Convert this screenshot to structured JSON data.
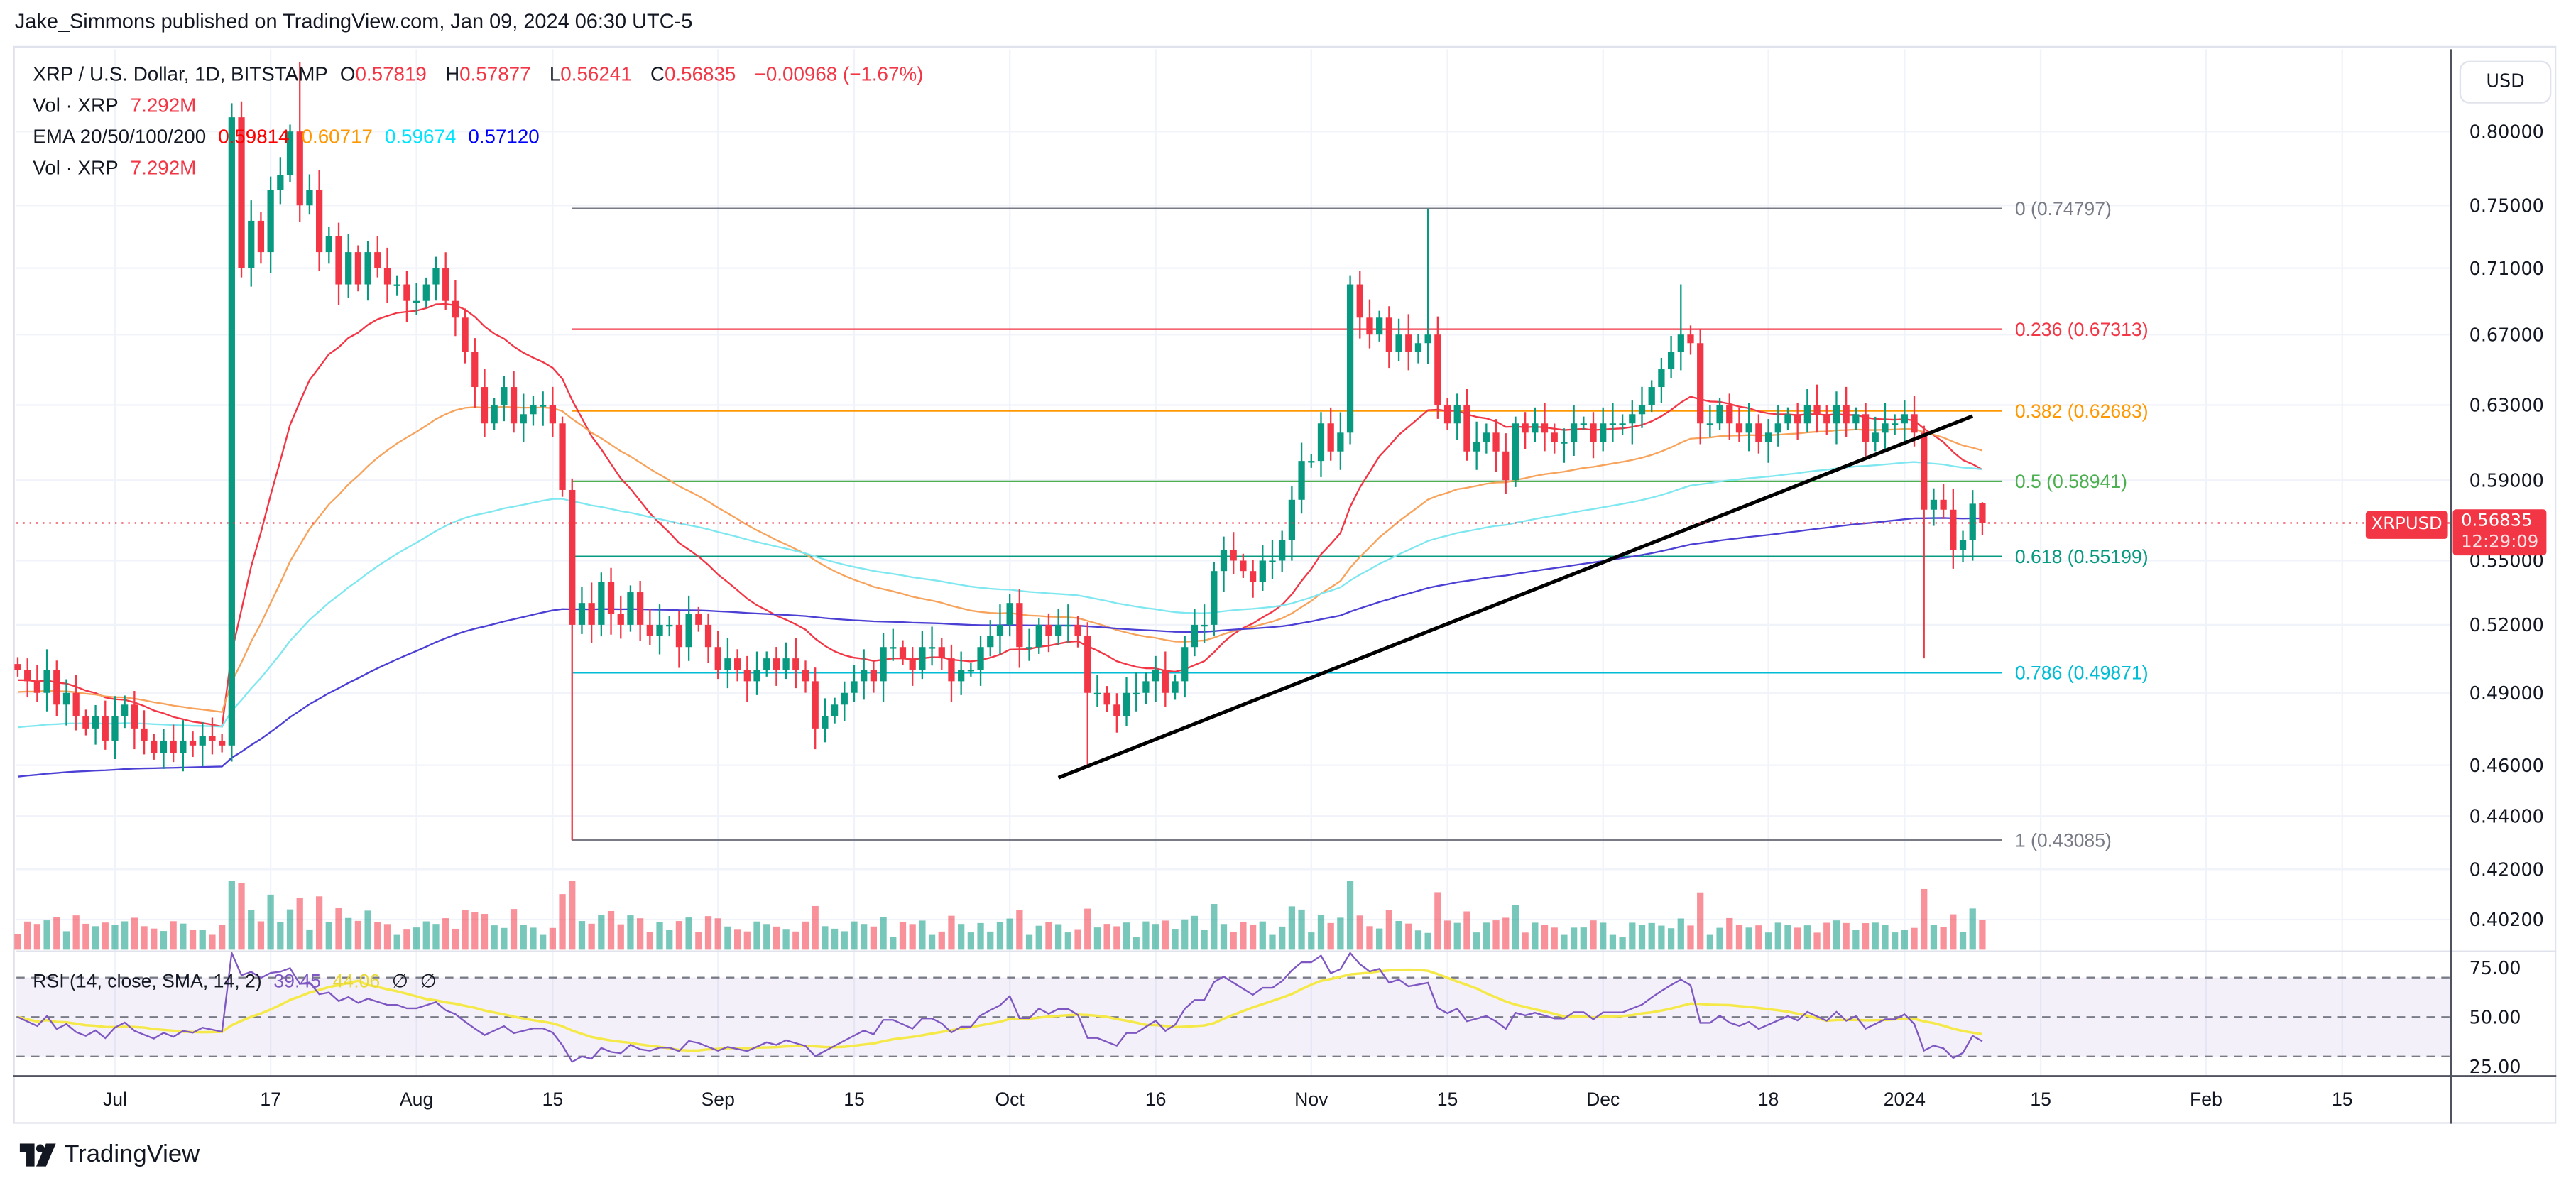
{
  "header": {
    "published": "Jake_Simmons published on TradingView.com, Jan 09, 2024 06:30 UTC-5"
  },
  "legend": {
    "symbol": "XRP / U.S. Dollar, 1D, BITSTAMP",
    "o_label": "O",
    "o": "0.57819",
    "h_label": "H",
    "h": "0.57877",
    "l_label": "L",
    "l": "0.56241",
    "c_label": "C",
    "c": "0.56835",
    "change": "−0.00968 (−1.67%)",
    "vol_label": "Vol · XRP",
    "vol": "7.292M",
    "ema_label": "EMA 20/50/100/200",
    "ema20": "0.59814",
    "ema50": "0.60717",
    "ema100": "0.59674",
    "ema200": "0.57120",
    "vol2_label": "Vol · XRP",
    "vol2": "7.292M",
    "rsi_label": "RSI (14, close, SMA, 14, 2)",
    "rsi": "39.45",
    "rsi_sma": "44.06",
    "rsi_extra1": "∅",
    "rsi_extra2": "∅"
  },
  "axis": {
    "currency": "USD",
    "last_symbol": "XRPUSD",
    "last_price": "0.56835",
    "countdown": "12:29:09"
  },
  "logo": {
    "text": "TradingView"
  },
  "colors": {
    "up": "#089981",
    "down": "#f23645",
    "ema20": "#f23645",
    "ema50": "#f7a35c",
    "ema100": "#7fe7f0",
    "ema200": "#4b3fd4",
    "rsi": "#7e57c2",
    "rsi_sma": "#f5e94a"
  },
  "chart_data": {
    "type": "candlestick",
    "price_scale": "log",
    "first_candle_date": "2023-06-21",
    "closes": [
      0.5,
      0.495,
      0.49,
      0.5,
      0.485,
      0.49,
      0.48,
      0.475,
      0.48,
      0.47,
      0.48,
      0.485,
      0.475,
      0.47,
      0.465,
      0.47,
      0.465,
      0.47,
      0.468,
      0.472,
      0.47,
      0.468,
      0.81,
      0.71,
      0.74,
      0.72,
      0.76,
      0.77,
      0.8,
      0.75,
      0.76,
      0.72,
      0.73,
      0.7,
      0.72,
      0.7,
      0.72,
      0.71,
      0.7,
      0.7,
      0.69,
      0.69,
      0.7,
      0.71,
      0.69,
      0.68,
      0.66,
      0.64,
      0.62,
      0.63,
      0.64,
      0.62,
      0.625,
      0.63,
      0.63,
      0.62,
      0.585,
      0.52,
      0.53,
      0.52,
      0.54,
      0.525,
      0.52,
      0.535,
      0.52,
      0.515,
      0.52,
      0.52,
      0.51,
      0.525,
      0.52,
      0.51,
      0.5,
      0.505,
      0.5,
      0.495,
      0.5,
      0.505,
      0.5,
      0.505,
      0.5,
      0.495,
      0.475,
      0.48,
      0.485,
      0.49,
      0.495,
      0.5,
      0.495,
      0.51,
      0.51,
      0.505,
      0.5,
      0.51,
      0.51,
      0.505,
      0.495,
      0.5,
      0.5,
      0.51,
      0.515,
      0.52,
      0.53,
      0.51,
      0.51,
      0.52,
      0.515,
      0.52,
      0.52,
      0.515,
      0.49,
      0.49,
      0.485,
      0.48,
      0.49,
      0.49,
      0.495,
      0.5,
      0.49,
      0.495,
      0.51,
      0.52,
      0.52,
      0.545,
      0.555,
      0.55,
      0.545,
      0.54,
      0.55,
      0.55,
      0.56,
      0.58,
      0.6,
      0.6,
      0.62,
      0.605,
      0.615,
      0.7,
      0.68,
      0.67,
      0.68,
      0.66,
      0.67,
      0.66,
      0.665,
      0.67,
      0.63,
      0.62,
      0.63,
      0.605,
      0.61,
      0.615,
      0.605,
      0.59,
      0.62,
      0.615,
      0.62,
      0.615,
      0.61,
      0.61,
      0.62,
      0.62,
      0.61,
      0.62,
      0.62,
      0.62,
      0.625,
      0.63,
      0.64,
      0.65,
      0.66,
      0.67,
      0.665,
      0.62,
      0.62,
      0.63,
      0.62,
      0.615,
      0.62,
      0.61,
      0.615,
      0.62,
      0.625,
      0.62,
      0.63,
      0.625,
      0.62,
      0.63,
      0.62,
      0.625,
      0.61,
      0.615,
      0.62,
      0.62,
      0.625,
      0.615,
      0.575,
      0.58,
      0.575,
      0.555,
      0.56,
      0.578,
      0.56835
    ],
    "notable_wicks": [
      {
        "date": "2023-07-13",
        "high": 0.82
      },
      {
        "date": "2023-07-20",
        "high": 0.85
      },
      {
        "date": "2023-08-17",
        "low": 0.43085
      },
      {
        "date": "2023-10-09",
        "low": 0.46
      },
      {
        "date": "2023-11-13",
        "high": 0.74797
      },
      {
        "date": "2023-12-09",
        "high": 0.7
      },
      {
        "date": "2024-01-03",
        "low": 0.505
      }
    ],
    "last_ohlc": {
      "open": 0.57819,
      "high": 0.57877,
      "low": 0.56241,
      "close": 0.56835
    },
    "price_ticks": [
      "0.80000",
      "0.75000",
      "0.71000",
      "0.67000",
      "0.63000",
      "0.59000",
      "0.55000",
      "0.52000",
      "0.49000",
      "0.46000",
      "0.44000",
      "0.42000",
      "0.40200"
    ],
    "rsi_ticks": [
      "75.00",
      "50.00",
      "25.00"
    ],
    "time_ticks": [
      {
        "label": "Jul",
        "date": "2023-07-01"
      },
      {
        "label": "17",
        "date": "2023-07-17"
      },
      {
        "label": "Aug",
        "date": "2023-08-01"
      },
      {
        "label": "15",
        "date": "2023-08-15"
      },
      {
        "label": "Sep",
        "date": "2023-09-01"
      },
      {
        "label": "15",
        "date": "2023-09-15"
      },
      {
        "label": "Oct",
        "date": "2023-10-01"
      },
      {
        "label": "16",
        "date": "2023-10-16"
      },
      {
        "label": "Nov",
        "date": "2023-11-01"
      },
      {
        "label": "15",
        "date": "2023-11-15"
      },
      {
        "label": "Dec",
        "date": "2023-12-01"
      },
      {
        "label": "18",
        "date": "2023-12-18"
      },
      {
        "label": "2024",
        "date": "2024-01-01"
      },
      {
        "label": "15",
        "date": "2024-01-15"
      },
      {
        "label": "Feb",
        "date": "2024-02-01"
      },
      {
        "label": "15",
        "date": "2024-02-15"
      }
    ],
    "fibonacci": {
      "from": "2023-08-17",
      "to": "2024-01-11",
      "levels": [
        {
          "label": "0 (0.74797)",
          "price": 0.74797,
          "color": "#787b86"
        },
        {
          "label": "0.236 (0.67313)",
          "price": 0.67313,
          "color": "#f23645"
        },
        {
          "label": "0.382 (0.62683)",
          "price": 0.62683,
          "color": "#ff9800"
        },
        {
          "label": "0.5 (0.58941)",
          "price": 0.58941,
          "color": "#4caf50"
        },
        {
          "label": "0.618 (0.55199)",
          "price": 0.55199,
          "color": "#089981"
        },
        {
          "label": "0.786 (0.49871)",
          "price": 0.49871,
          "color": "#00bcd4"
        },
        {
          "label": "1 (0.43085)",
          "price": 0.43085,
          "color": "#787b86"
        }
      ]
    },
    "trendline": {
      "from": {
        "date": "2023-10-06",
        "price": 0.455
      },
      "to": {
        "date": "2024-01-08",
        "price": 0.624
      }
    }
  }
}
